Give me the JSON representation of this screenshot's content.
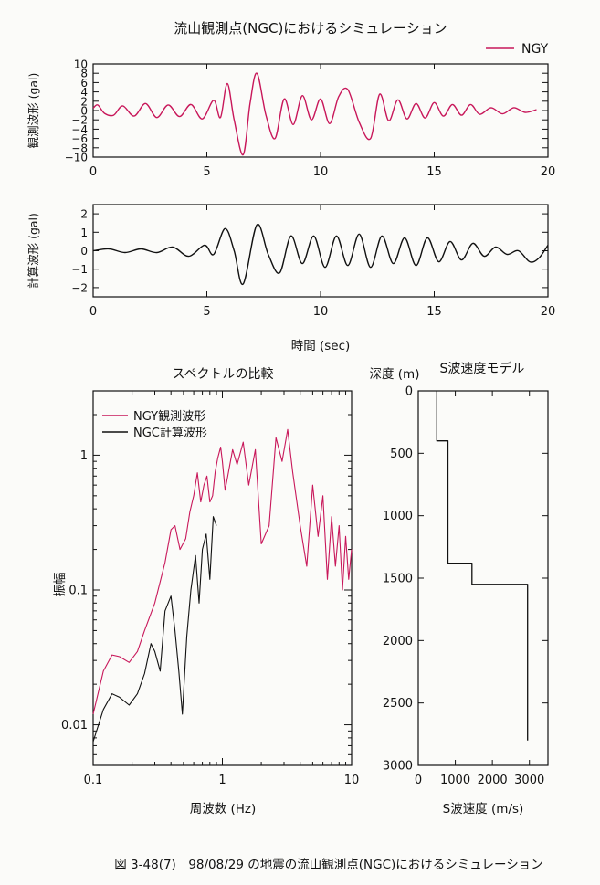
{
  "title": "流山観測点(NGC)におけるシミュレーション",
  "caption": "図 3-48(7)　98/08/29 の地震の流山観測点(NGC)におけるシミュレーション",
  "colors": {
    "observed": "#c8175a",
    "computed": "#111111",
    "axis": "#111111",
    "background": "#fbfbf9"
  },
  "chart_data": [
    {
      "id": "observed",
      "type": "line",
      "title": "流山観測点(NGC)におけるシミュレーション",
      "xlabel": "",
      "ylabel": "観測波形 (gal)",
      "xlim": [
        0,
        20
      ],
      "ylim": [
        -10,
        10
      ],
      "xticks": [
        0,
        5,
        10,
        15,
        20
      ],
      "yticks": [
        -10,
        -8,
        -6,
        -4,
        -2,
        0,
        2,
        4,
        6,
        8,
        10
      ],
      "ytick_labels": [
        "−10",
        "−8",
        "−6",
        "−4",
        "−2",
        "0",
        "2",
        "4",
        "6",
        "8",
        "10"
      ],
      "legend": {
        "entries": [
          "NGY"
        ],
        "position": "top-right"
      },
      "series": [
        {
          "name": "NGY",
          "x": [
            0,
            0.2,
            0.5,
            0.9,
            1.3,
            1.8,
            2.3,
            2.8,
            3.3,
            3.8,
            4.3,
            4.8,
            5.3,
            5.6,
            5.9,
            6.2,
            6.6,
            6.9,
            7.2,
            7.6,
            8.0,
            8.4,
            8.8,
            9.2,
            9.6,
            10.0,
            10.4,
            10.8,
            11.2,
            11.7,
            12.2,
            12.6,
            13.0,
            13.4,
            13.8,
            14.2,
            14.6,
            15.0,
            15.4,
            15.8,
            16.2,
            16.6,
            17.0,
            17.5,
            18.0,
            18.5,
            19.0,
            19.5
          ],
          "values": [
            0.5,
            1.2,
            -0.6,
            -1.0,
            1.0,
            -1.2,
            1.5,
            -1.5,
            1.2,
            -1.3,
            1.3,
            -1.8,
            2.2,
            -1.5,
            5.8,
            -2.0,
            -9.5,
            1.5,
            8.0,
            -1.0,
            -6.0,
            2.5,
            -3.0,
            3.2,
            -2.0,
            2.5,
            -2.8,
            3.0,
            4.5,
            -2.5,
            -6.0,
            3.5,
            -2.2,
            2.3,
            -1.8,
            1.5,
            -1.6,
            1.7,
            -1.2,
            1.3,
            -1.0,
            1.3,
            -0.8,
            0.6,
            -0.7,
            0.6,
            -0.4,
            0.2
          ]
        }
      ]
    },
    {
      "id": "computed",
      "type": "line",
      "xlabel": "時間 (sec)",
      "ylabel": "計算波形 (gal)",
      "xlim": [
        0,
        20
      ],
      "ylim": [
        -2.5,
        2.5
      ],
      "xticks": [
        0,
        5,
        10,
        15,
        20
      ],
      "yticks": [
        -2,
        -1,
        0,
        1,
        2
      ],
      "ytick_labels": [
        "−2",
        "−1",
        "0",
        "1",
        "2"
      ],
      "series": [
        {
          "x": [
            0,
            0.7,
            1.4,
            2.1,
            2.8,
            3.5,
            4.2,
            4.9,
            5.3,
            5.8,
            6.2,
            6.6,
            7.2,
            7.7,
            8.2,
            8.7,
            9.2,
            9.7,
            10.2,
            10.7,
            11.2,
            11.7,
            12.2,
            12.7,
            13.2,
            13.7,
            14.2,
            14.7,
            15.2,
            15.7,
            16.2,
            16.7,
            17.2,
            17.7,
            18.2,
            18.7,
            19.2,
            19.6,
            20.0
          ],
          "values": [
            0,
            0.1,
            -0.1,
            0.1,
            -0.1,
            0.2,
            -0.3,
            0.3,
            -0.2,
            1.2,
            0.0,
            -1.8,
            1.4,
            -0.2,
            -1.2,
            0.8,
            -0.7,
            0.8,
            -0.9,
            0.8,
            -0.8,
            0.9,
            -0.9,
            0.8,
            -0.7,
            0.7,
            -0.8,
            0.7,
            -0.6,
            0.5,
            -0.5,
            0.4,
            -0.3,
            0.2,
            -0.2,
            0.0,
            -0.6,
            -0.4,
            0.3
          ]
        }
      ]
    },
    {
      "id": "spectrum",
      "type": "line",
      "title": "スペクトルの比較",
      "xlabel": "周波数 (Hz)",
      "ylabel": "振幅",
      "xscale": "log",
      "yscale": "log",
      "xlim": [
        0.1,
        10
      ],
      "ylim": [
        0.005,
        3
      ],
      "xticks": [
        0.1,
        1,
        10
      ],
      "xtick_labels": [
        "0.1",
        "1",
        "10"
      ],
      "yticks": [
        0.01,
        0.1,
        1
      ],
      "ytick_labels": [
        "0.01",
        "0.1",
        "1"
      ],
      "legend": {
        "entries": [
          "NGY観測波形",
          "NGC計算波形"
        ],
        "position": "top-left"
      },
      "series": [
        {
          "name": "NGY観測波形",
          "x": [
            0.1,
            0.12,
            0.14,
            0.16,
            0.19,
            0.22,
            0.25,
            0.3,
            0.36,
            0.4,
            0.43,
            0.47,
            0.52,
            0.56,
            0.6,
            0.64,
            0.68,
            0.72,
            0.76,
            0.8,
            0.84,
            0.88,
            0.92,
            0.97,
            1.0,
            1.05,
            1.1,
            1.2,
            1.3,
            1.45,
            1.6,
            1.8,
            2.0,
            2.3,
            2.6,
            2.9,
            3.2,
            3.5,
            4.0,
            4.5,
            5.0,
            5.5,
            6.0,
            6.5,
            7.0,
            7.5,
            8.0,
            8.5,
            9.0,
            9.5,
            10.0
          ],
          "values": [
            0.012,
            0.025,
            0.033,
            0.032,
            0.029,
            0.035,
            0.05,
            0.08,
            0.16,
            0.28,
            0.3,
            0.2,
            0.24,
            0.38,
            0.5,
            0.74,
            0.45,
            0.6,
            0.7,
            0.45,
            0.5,
            0.75,
            0.95,
            1.15,
            0.9,
            0.55,
            0.7,
            1.1,
            0.85,
            1.25,
            0.6,
            1.1,
            0.22,
            0.3,
            1.35,
            0.9,
            1.55,
            0.75,
            0.3,
            0.15,
            0.6,
            0.25,
            0.5,
            0.12,
            0.35,
            0.15,
            0.3,
            0.1,
            0.25,
            0.12,
            0.2
          ]
        },
        {
          "name": "NGC計算波形",
          "x": [
            0.1,
            0.12,
            0.14,
            0.16,
            0.19,
            0.22,
            0.25,
            0.28,
            0.3,
            0.33,
            0.36,
            0.4,
            0.43,
            0.46,
            0.49,
            0.53,
            0.57,
            0.62,
            0.66,
            0.7,
            0.75,
            0.8,
            0.85,
            0.9
          ],
          "values": [
            0.0075,
            0.013,
            0.017,
            0.016,
            0.014,
            0.017,
            0.024,
            0.04,
            0.035,
            0.025,
            0.07,
            0.09,
            0.05,
            0.025,
            0.012,
            0.045,
            0.1,
            0.18,
            0.08,
            0.2,
            0.26,
            0.12,
            0.35,
            0.3
          ]
        }
      ]
    },
    {
      "id": "velocity-model",
      "type": "line",
      "title": "S波速度モデル",
      "xlabel": "S波速度 (m/s)",
      "ylabel": "深度 (m)",
      "xlim": [
        0,
        3500
      ],
      "ylim": [
        0,
        3000
      ],
      "xticks": [
        0,
        1000,
        2000,
        3000
      ],
      "yticks": [
        0,
        500,
        1000,
        1500,
        2000,
        2500,
        3000
      ],
      "series": [
        {
          "x": [
            500,
            500,
            800,
            800,
            1450,
            1450,
            2950,
            2950
          ],
          "values": [
            0,
            400,
            400,
            1380,
            1380,
            1550,
            1550,
            2800
          ]
        }
      ]
    }
  ]
}
